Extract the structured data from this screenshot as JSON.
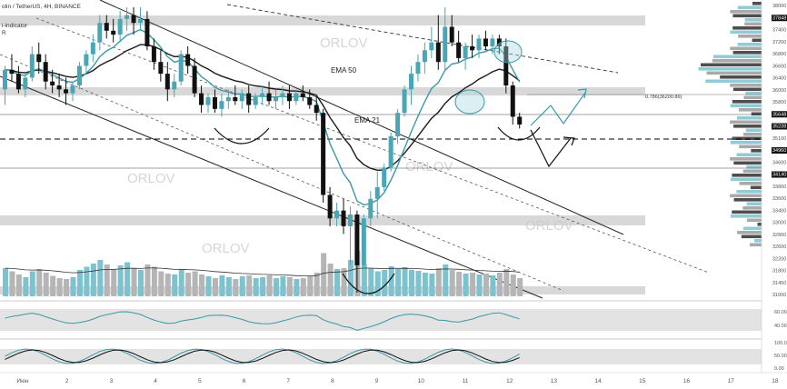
{
  "header": {
    "symbol_line": "olin / TetherUS, 4H, BINANCE",
    "indicator_line": "i-indicator",
    "r_label": "R"
  },
  "chart_data": {
    "type": "candlestick",
    "price_range": [
      30900,
      38200
    ],
    "x_axis_labels": [
      "Июн",
      "2",
      "3",
      "4",
      "5",
      "6",
      "7",
      "8",
      "9",
      "10",
      "11",
      "12",
      "13",
      "14",
      "15",
      "16",
      "17",
      "18"
    ],
    "price_axis_labels": [
      "38000",
      "37848",
      "37400",
      "37200",
      "36800",
      "36600",
      "36400",
      "36000",
      "35800",
      "35648",
      "35238",
      "35100",
      "34960",
      "34600",
      "34140",
      "33800",
      "33600",
      "33400",
      "33000",
      "32800",
      "32600",
      "32200",
      "31800",
      "31450",
      "31000"
    ],
    "candles": [
      {
        "o": 36100,
        "h": 36700,
        "l": 35700,
        "c": 36600
      },
      {
        "o": 36600,
        "h": 37000,
        "l": 36300,
        "c": 36500
      },
      {
        "o": 36500,
        "h": 36700,
        "l": 36000,
        "c": 36100
      },
      {
        "o": 36100,
        "h": 36500,
        "l": 35900,
        "c": 36400
      },
      {
        "o": 36400,
        "h": 37200,
        "l": 36300,
        "c": 37000
      },
      {
        "o": 37000,
        "h": 37300,
        "l": 36500,
        "c": 36800
      },
      {
        "o": 36800,
        "h": 37000,
        "l": 36100,
        "c": 36300
      },
      {
        "o": 36300,
        "h": 36600,
        "l": 36000,
        "c": 36200
      },
      {
        "o": 36200,
        "h": 36500,
        "l": 35900,
        "c": 36100
      },
      {
        "o": 36100,
        "h": 36400,
        "l": 35700,
        "c": 36000
      },
      {
        "o": 36000,
        "h": 36300,
        "l": 35800,
        "c": 36200
      },
      {
        "o": 36200,
        "h": 36800,
        "l": 36100,
        "c": 36700
      },
      {
        "o": 36700,
        "h": 37100,
        "l": 36500,
        "c": 37000
      },
      {
        "o": 37000,
        "h": 37500,
        "l": 36800,
        "c": 37300
      },
      {
        "o": 37300,
        "h": 38000,
        "l": 37100,
        "c": 37800
      },
      {
        "o": 37800,
        "h": 38000,
        "l": 37400,
        "c": 37600
      },
      {
        "o": 37600,
        "h": 37900,
        "l": 37300,
        "c": 37500
      },
      {
        "o": 37500,
        "h": 38100,
        "l": 37300,
        "c": 37900
      },
      {
        "o": 37900,
        "h": 38200,
        "l": 37600,
        "c": 38000
      },
      {
        "o": 38000,
        "h": 38200,
        "l": 37500,
        "c": 37800
      },
      {
        "o": 37800,
        "h": 38200,
        "l": 37600,
        "c": 37900
      },
      {
        "o": 37900,
        "h": 38100,
        "l": 37100,
        "c": 37200
      },
      {
        "o": 37200,
        "h": 37400,
        "l": 36600,
        "c": 36800
      },
      {
        "o": 36800,
        "h": 37100,
        "l": 36300,
        "c": 36500
      },
      {
        "o": 36500,
        "h": 36800,
        "l": 35800,
        "c": 36100
      },
      {
        "o": 36100,
        "h": 36500,
        "l": 35900,
        "c": 36300
      },
      {
        "o": 36300,
        "h": 37100,
        "l": 36200,
        "c": 37000
      },
      {
        "o": 37000,
        "h": 37200,
        "l": 36500,
        "c": 36700
      },
      {
        "o": 36700,
        "h": 36900,
        "l": 35900,
        "c": 36000
      },
      {
        "o": 36000,
        "h": 36200,
        "l": 35500,
        "c": 35700
      },
      {
        "o": 35700,
        "h": 36000,
        "l": 35500,
        "c": 35900
      },
      {
        "o": 35900,
        "h": 36100,
        "l": 35500,
        "c": 35600
      },
      {
        "o": 35600,
        "h": 36000,
        "l": 35400,
        "c": 35800
      },
      {
        "o": 35800,
        "h": 36100,
        "l": 35600,
        "c": 35900
      },
      {
        "o": 35900,
        "h": 36200,
        "l": 35700,
        "c": 35800
      },
      {
        "o": 35800,
        "h": 36100,
        "l": 35600,
        "c": 36000
      },
      {
        "o": 36000,
        "h": 36200,
        "l": 35500,
        "c": 35700
      },
      {
        "o": 35700,
        "h": 36000,
        "l": 35600,
        "c": 35900
      },
      {
        "o": 35900,
        "h": 36200,
        "l": 35700,
        "c": 36000
      },
      {
        "o": 36000,
        "h": 36300,
        "l": 35700,
        "c": 35800
      },
      {
        "o": 35800,
        "h": 36100,
        "l": 35600,
        "c": 35900
      },
      {
        "o": 35900,
        "h": 36200,
        "l": 35700,
        "c": 36000
      },
      {
        "o": 36000,
        "h": 36200,
        "l": 35600,
        "c": 35800
      },
      {
        "o": 35800,
        "h": 36100,
        "l": 35700,
        "c": 36000
      },
      {
        "o": 36000,
        "h": 36200,
        "l": 35800,
        "c": 35900
      },
      {
        "o": 35900,
        "h": 36100,
        "l": 35600,
        "c": 35700
      },
      {
        "o": 35700,
        "h": 35900,
        "l": 35300,
        "c": 35500
      },
      {
        "o": 35500,
        "h": 35600,
        "l": 33200,
        "c": 33400
      },
      {
        "o": 33400,
        "h": 33600,
        "l": 32600,
        "c": 32800
      },
      {
        "o": 32800,
        "h": 33200,
        "l": 32600,
        "c": 33000
      },
      {
        "o": 33000,
        "h": 33300,
        "l": 32400,
        "c": 32600
      },
      {
        "o": 32600,
        "h": 33100,
        "l": 31600,
        "c": 32900
      },
      {
        "o": 32900,
        "h": 33000,
        "l": 30900,
        "c": 31600
      },
      {
        "o": 31600,
        "h": 32900,
        "l": 31500,
        "c": 32800
      },
      {
        "o": 32800,
        "h": 33500,
        "l": 32600,
        "c": 33300
      },
      {
        "o": 33300,
        "h": 34000,
        "l": 32800,
        "c": 33600
      },
      {
        "o": 33600,
        "h": 34200,
        "l": 33500,
        "c": 34100
      },
      {
        "o": 34100,
        "h": 35000,
        "l": 34000,
        "c": 34900
      },
      {
        "o": 34900,
        "h": 35600,
        "l": 34700,
        "c": 35500
      },
      {
        "o": 35500,
        "h": 36200,
        "l": 35400,
        "c": 36100
      },
      {
        "o": 36100,
        "h": 36700,
        "l": 35700,
        "c": 36500
      },
      {
        "o": 36500,
        "h": 37000,
        "l": 36300,
        "c": 36800
      },
      {
        "o": 36800,
        "h": 37300,
        "l": 36500,
        "c": 37100
      },
      {
        "o": 37100,
        "h": 37700,
        "l": 36900,
        "c": 37300
      },
      {
        "o": 37300,
        "h": 38000,
        "l": 36600,
        "c": 36800
      },
      {
        "o": 36800,
        "h": 38200,
        "l": 36600,
        "c": 37700
      },
      {
        "o": 37700,
        "h": 38000,
        "l": 37200,
        "c": 37300
      },
      {
        "o": 37300,
        "h": 37600,
        "l": 36800,
        "c": 36900
      },
      {
        "o": 36900,
        "h": 37300,
        "l": 36600,
        "c": 37200
      },
      {
        "o": 37200,
        "h": 37500,
        "l": 36900,
        "c": 37100
      },
      {
        "o": 37100,
        "h": 37500,
        "l": 36900,
        "c": 37400
      },
      {
        "o": 37400,
        "h": 37600,
        "l": 37100,
        "c": 37200
      },
      {
        "o": 37200,
        "h": 37500,
        "l": 37000,
        "c": 37400
      },
      {
        "o": 37400,
        "h": 37500,
        "l": 37000,
        "c": 37200
      },
      {
        "o": 37200,
        "h": 37400,
        "l": 36000,
        "c": 36200
      },
      {
        "o": 36200,
        "h": 36300,
        "l": 35200,
        "c": 35400
      },
      {
        "o": 35400,
        "h": 35500,
        "l": 35100,
        "c": 35200
      }
    ],
    "volumes": [
      62,
      55,
      48,
      42,
      55,
      60,
      52,
      45,
      40,
      38,
      42,
      58,
      65,
      72,
      80,
      70,
      60,
      68,
      75,
      62,
      58,
      70,
      65,
      55,
      50,
      48,
      60,
      52,
      55,
      48,
      44,
      40,
      46,
      42,
      38,
      44,
      46,
      40,
      42,
      46,
      40,
      44,
      42,
      38,
      40,
      44,
      52,
      95,
      72,
      60,
      62,
      80,
      100,
      70,
      62,
      55,
      58,
      66,
      60,
      64,
      58,
      56,
      52,
      50,
      62,
      70,
      58,
      54,
      50,
      52,
      48,
      50,
      46,
      52,
      60,
      48,
      40
    ],
    "ema_fast_label": "EMA 21",
    "ema_slow_label": "EMA 50",
    "horizontal_levels": [
      37848,
      35648,
      35238,
      34960,
      34140
    ],
    "fib_label": "0.786(36200.86)",
    "watermark": "ORLOV",
    "osc1_labels": [
      "60.00",
      "40.00"
    ],
    "osc2_labels": [
      "100.0",
      "50.00",
      "0.00"
    ],
    "colors": {
      "bull": "#4aa6b4",
      "bear": "#111111",
      "ema_fast": "#3a98a8",
      "ema_slow": "#1a1a1a",
      "volume_bull": "#7dc3cf",
      "volume_bear": "#b5b5b5",
      "zone": "#d3d3d3"
    }
  }
}
